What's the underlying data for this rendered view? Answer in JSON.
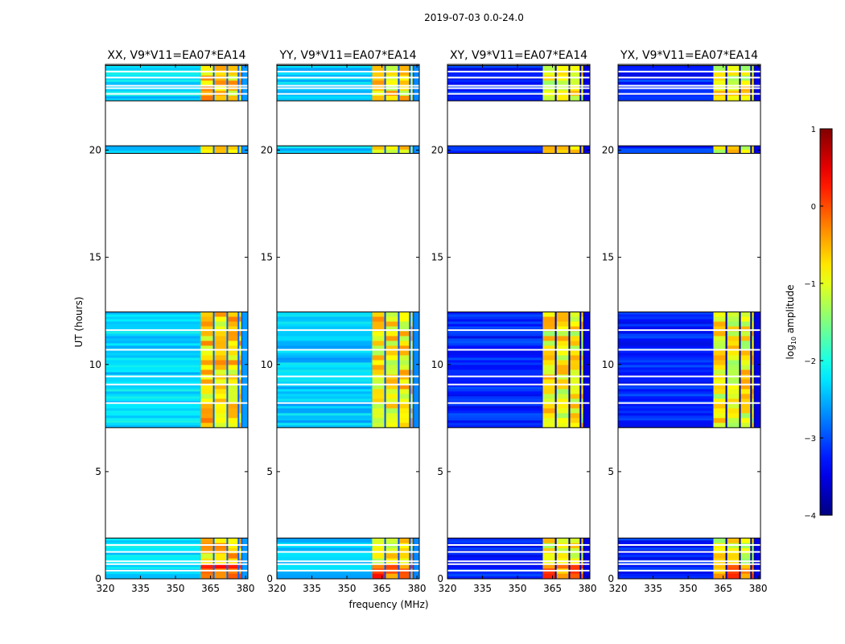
{
  "suptitle": "2019-07-03 0.0-24.0",
  "chart_data": {
    "type": "heatmap",
    "xlabel": "frequency (MHz)",
    "ylabel": "UT (hours)",
    "x_range": [
      320,
      381
    ],
    "y_range": [
      0,
      24
    ],
    "x_ticks": [
      320,
      335,
      350,
      365,
      380
    ],
    "y_ticks": [
      0,
      5,
      10,
      15,
      20
    ],
    "x_tick_labels": [
      "320",
      "335",
      "350",
      "365",
      "380"
    ],
    "y_tick_labels": [
      "0",
      "5",
      "10",
      "15",
      "20"
    ],
    "data_blocks_hours": [
      [
        0.0,
        1.9
      ],
      [
        7.05,
        12.45
      ],
      [
        19.85,
        20.2
      ],
      [
        22.3,
        23.95
      ]
    ],
    "bright_band_mhz": [
      360.5,
      378.5
    ],
    "panels": [
      {
        "title": "XX, V9*V11=EA07*EA14",
        "base_level": -2.3,
        "band_level": -0.8
      },
      {
        "title": "YY, V9*V11=EA07*EA14",
        "base_level": -2.4,
        "band_level": -0.9
      },
      {
        "title": "XY, V9*V11=EA07*EA14",
        "base_level": -3.2,
        "band_level": -1.0
      },
      {
        "title": "YX, V9*V11=EA07*EA14",
        "base_level": -3.2,
        "band_level": -1.0
      }
    ],
    "colorbar": {
      "label_prefix": "log",
      "label_sub": "10",
      "label_suffix": " amplitude",
      "range": [
        -4,
        1
      ],
      "ticks": [
        1,
        0,
        -1,
        -2,
        -3,
        -4
      ],
      "tick_labels": [
        "1",
        "0",
        "−1",
        "−2",
        "−3",
        "−4"
      ],
      "colormap": "jet"
    }
  }
}
